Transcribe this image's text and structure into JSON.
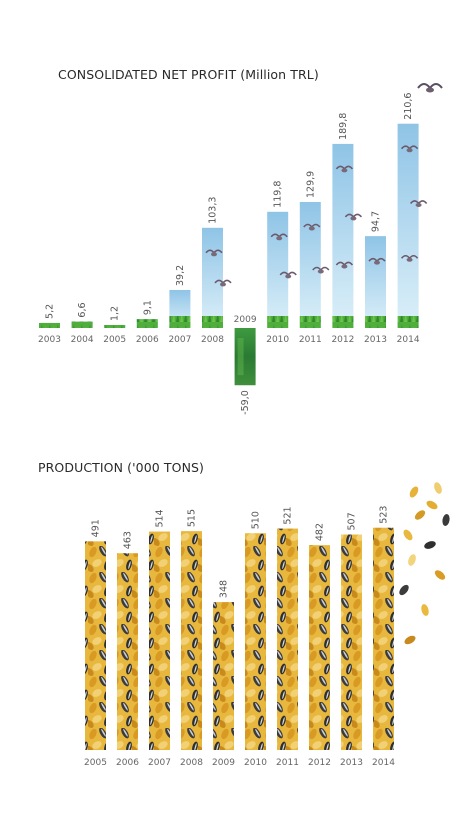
{
  "chart_data": [
    {
      "type": "bar",
      "title": "CONSOLIDATED NET PROFIT (Million TRL)",
      "categories": [
        "2003",
        "2004",
        "2005",
        "2006",
        "2007",
        "2008",
        "2009",
        "2010",
        "2011",
        "2012",
        "2013",
        "2014"
      ],
      "values": [
        5.2,
        6.6,
        1.2,
        9.1,
        39.2,
        103.3,
        -59.0,
        119.8,
        129.9,
        189.8,
        94.7,
        210.6
      ],
      "value_labels": [
        "5,2",
        "6,6",
        "1,2",
        "9,1",
        "39,2",
        "103,3",
        "-59,0",
        "119,8",
        "129,9",
        "189,8",
        "94,7",
        "210,6"
      ],
      "ylim": [
        -59.0,
        210.6
      ],
      "grid": false,
      "colors": {
        "sky_top": "#8fc4e6",
        "sky_bottom": "#d9eef8",
        "grass": "#3a9a3a",
        "negative": "#2f8a3a"
      }
    },
    {
      "type": "bar",
      "title": "PRODUCTION ('000 TONS)",
      "categories": [
        "2005",
        "2006",
        "2007",
        "2008",
        "2009",
        "2010",
        "2011",
        "2012",
        "2013",
        "2014"
      ],
      "values": [
        491,
        463,
        514,
        515,
        348,
        510,
        521,
        482,
        507,
        523
      ],
      "value_labels": [
        "491",
        "463",
        "514",
        "515",
        "348",
        "510",
        "521",
        "482",
        "507",
        "523"
      ],
      "ylim": [
        0,
        523
      ],
      "grid": false,
      "colors": {
        "seed_gold": "#e3b23c",
        "seed_dark": "#3a3a3a",
        "seed_light": "#f1d27a"
      }
    }
  ]
}
